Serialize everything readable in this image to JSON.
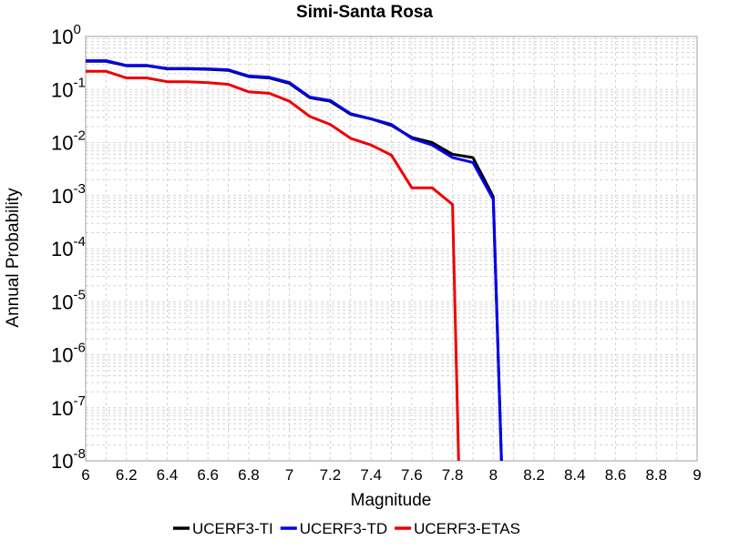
{
  "chart_data": {
    "type": "line",
    "title": "Simi-Santa Rosa",
    "xlabel": "Magnitude",
    "ylabel": "Annual Probability",
    "xlim": [
      6,
      9
    ],
    "ylim": [
      1e-08,
      1
    ],
    "yscale": "log",
    "grid": true,
    "legend_position": "bottom",
    "x_ticks": [
      "6",
      "6.2",
      "6.4",
      "6.6",
      "6.8",
      "7",
      "7.2",
      "7.4",
      "7.6",
      "7.8",
      "8",
      "8.2",
      "8.4",
      "8.6",
      "8.8",
      "9"
    ],
    "y_ticks": [
      {
        "base": "10",
        "exp": "0"
      },
      {
        "base": "10",
        "exp": "-1"
      },
      {
        "base": "10",
        "exp": "-2"
      },
      {
        "base": "10",
        "exp": "-3"
      },
      {
        "base": "10",
        "exp": "-4"
      },
      {
        "base": "10",
        "exp": "-5"
      },
      {
        "base": "10",
        "exp": "-6"
      },
      {
        "base": "10",
        "exp": "-7"
      },
      {
        "base": "10",
        "exp": "-8"
      }
    ],
    "series": [
      {
        "name": "UCERF3-TI",
        "color": "#000000",
        "points": [
          [
            6.0,
            0.34
          ],
          [
            6.1,
            0.34
          ],
          [
            6.2,
            0.28
          ],
          [
            6.3,
            0.28
          ],
          [
            6.4,
            0.245
          ],
          [
            6.5,
            0.245
          ],
          [
            6.6,
            0.24
          ],
          [
            6.7,
            0.23
          ],
          [
            6.8,
            0.175
          ],
          [
            6.9,
            0.165
          ],
          [
            7.0,
            0.13
          ],
          [
            7.1,
            0.07
          ],
          [
            7.2,
            0.06
          ],
          [
            7.3,
            0.034
          ],
          [
            7.4,
            0.028
          ],
          [
            7.5,
            0.021
          ],
          [
            7.6,
            0.0125
          ],
          [
            7.7,
            0.01
          ],
          [
            7.8,
            0.006
          ],
          [
            7.9,
            0.0052
          ],
          [
            8.0,
            0.00095
          ],
          [
            8.04,
            1e-08
          ]
        ]
      },
      {
        "name": "UCERF3-TD",
        "color": "#0000ee",
        "points": [
          [
            6.0,
            0.35
          ],
          [
            6.1,
            0.35
          ],
          [
            6.2,
            0.285
          ],
          [
            6.3,
            0.285
          ],
          [
            6.4,
            0.25
          ],
          [
            6.5,
            0.25
          ],
          [
            6.6,
            0.245
          ],
          [
            6.7,
            0.235
          ],
          [
            6.8,
            0.18
          ],
          [
            6.9,
            0.17
          ],
          [
            7.0,
            0.135
          ],
          [
            7.1,
            0.072
          ],
          [
            7.2,
            0.062
          ],
          [
            7.3,
            0.035
          ],
          [
            7.4,
            0.028
          ],
          [
            7.5,
            0.022
          ],
          [
            7.6,
            0.012
          ],
          [
            7.7,
            0.009
          ],
          [
            7.8,
            0.0052
          ],
          [
            7.9,
            0.0042
          ],
          [
            8.0,
            0.00085
          ],
          [
            8.04,
            1e-08
          ]
        ]
      },
      {
        "name": "UCERF3-ETAS",
        "color": "#ee0000",
        "points": [
          [
            6.0,
            0.22
          ],
          [
            6.1,
            0.22
          ],
          [
            6.2,
            0.165
          ],
          [
            6.3,
            0.165
          ],
          [
            6.4,
            0.14
          ],
          [
            6.5,
            0.14
          ],
          [
            6.6,
            0.135
          ],
          [
            6.7,
            0.125
          ],
          [
            6.8,
            0.09
          ],
          [
            6.9,
            0.085
          ],
          [
            7.0,
            0.06
          ],
          [
            7.1,
            0.031
          ],
          [
            7.2,
            0.022
          ],
          [
            7.3,
            0.012
          ],
          [
            7.4,
            0.009
          ],
          [
            7.5,
            0.0058
          ],
          [
            7.6,
            0.0014
          ],
          [
            7.7,
            0.0014
          ],
          [
            7.8,
            0.00068
          ],
          [
            7.83,
            1e-08
          ]
        ]
      }
    ]
  }
}
